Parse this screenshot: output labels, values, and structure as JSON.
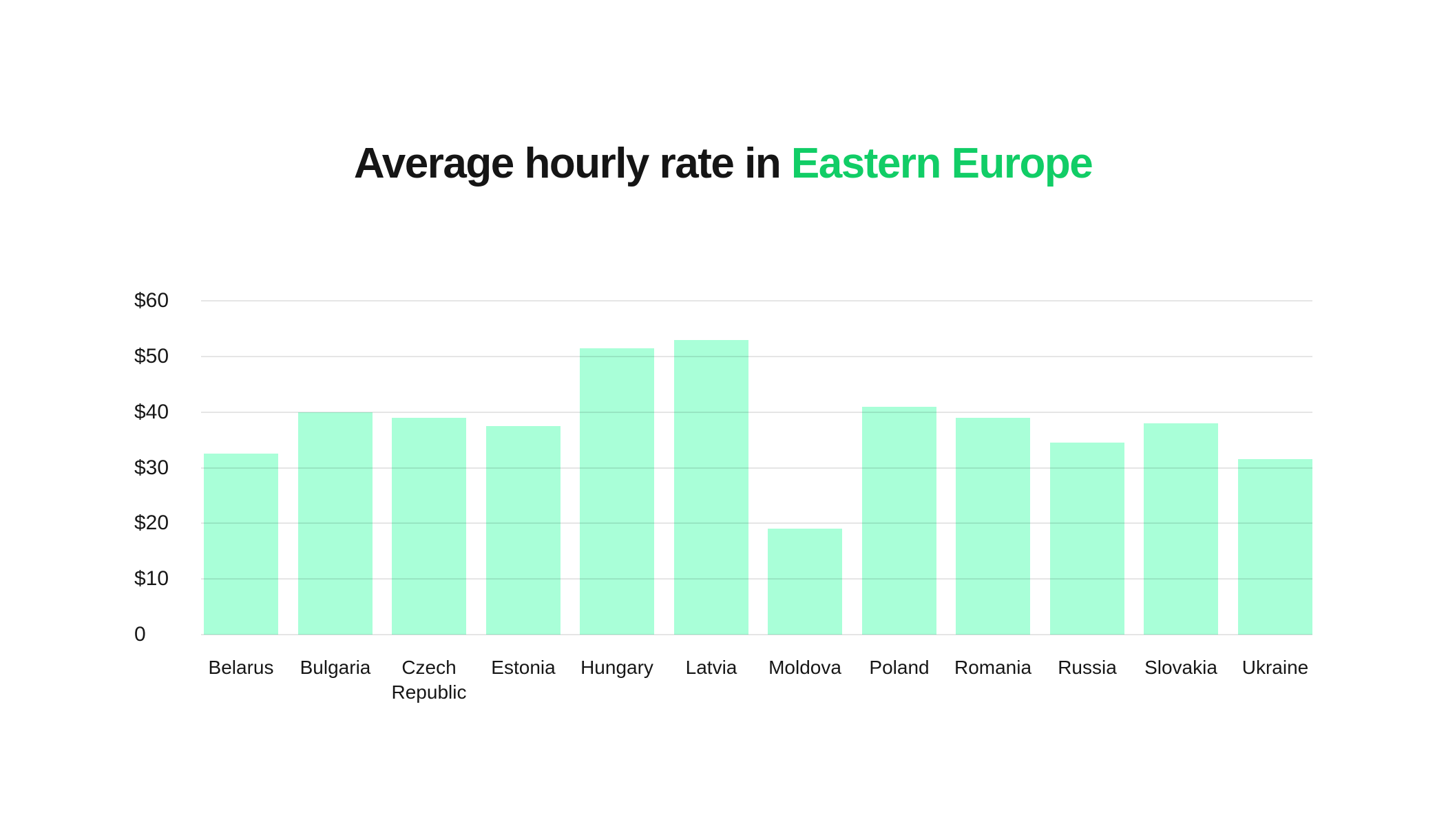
{
  "title": {
    "prefix": "Average hourly rate in ",
    "highlight": "Eastern Europe"
  },
  "colors": {
    "bar_fill": "#A9FFD8",
    "title_text": "#151515",
    "title_highlight": "#11CD66",
    "gridline": "#E5E5E5",
    "axis_text": "#161616",
    "background": "#FFFFFF"
  },
  "chart_data": {
    "type": "bar",
    "title": "Average hourly rate in Eastern Europe",
    "categories": [
      "Belarus",
      "Bulgaria",
      "Czech Republic",
      "Estonia",
      "Hungary",
      "Latvia",
      "Moldova",
      "Poland",
      "Romania",
      "Russia",
      "Slovakia",
      "Ukraine"
    ],
    "values": [
      32.5,
      40,
      39,
      37.5,
      51.5,
      53,
      19,
      41,
      39,
      34.5,
      38,
      31.5
    ],
    "xlabel": "",
    "ylabel": "",
    "ylim": [
      0,
      60
    ],
    "ytick_values": [
      60,
      50,
      40,
      30,
      20,
      10,
      0
    ],
    "ytick_labels": [
      "$60",
      "$50",
      "$40",
      "$30",
      "$20",
      "$10",
      "0"
    ],
    "grid": "horizontal",
    "legend": "none",
    "bar_color": "#A9FFD8"
  }
}
